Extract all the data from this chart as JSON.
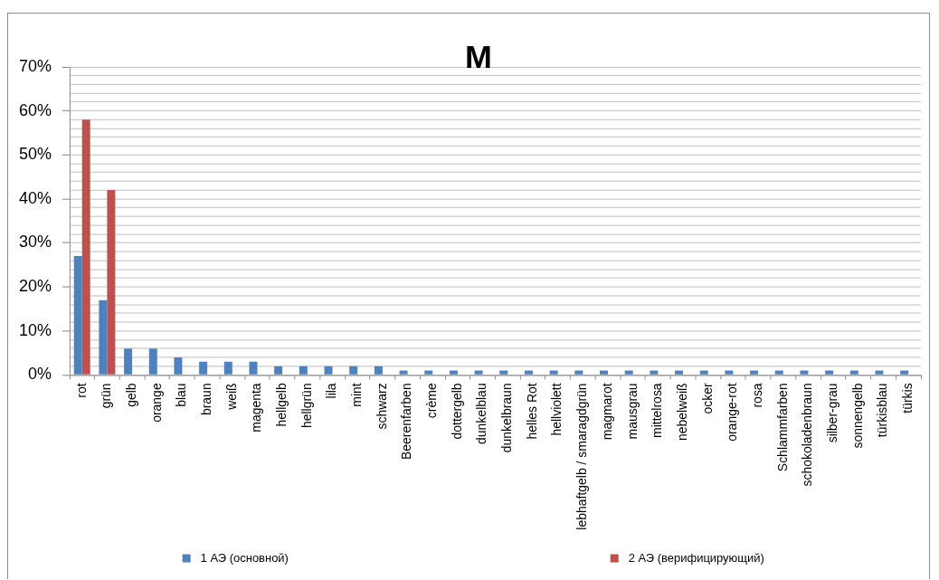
{
  "chart_data": {
    "type": "bar",
    "title": "M",
    "categories": [
      "rot",
      "grün",
      "gelb",
      "orange",
      "blau",
      "braun",
      "weiß",
      "magenta",
      "hellgelb",
      "hellgrün",
      "lila",
      "mint",
      "schwarz",
      "Beerenfarben",
      "crème",
      "dottergelb",
      "dunkelblau",
      "dunkelbraun",
      "helles Rot",
      "hellviolett",
      "lebhaftgelb / smaragdgrün",
      "magmarot",
      "mausgrau",
      "mittelrosa",
      "nebelweiß",
      "ocker",
      "orange-rot",
      "rosa",
      "Schlammfarben",
      "schokoladenbraun",
      "silber-grau",
      "sonnengelb",
      "türkisblau",
      "türkis"
    ],
    "series": [
      {
        "name": "1 АЭ (основной)",
        "color": "#4f81bd",
        "values": [
          27,
          17,
          6,
          6,
          4,
          3,
          3,
          3,
          2,
          2,
          2,
          2,
          2,
          1,
          1,
          1,
          1,
          1,
          1,
          1,
          1,
          1,
          1,
          1,
          1,
          1,
          1,
          1,
          1,
          1,
          1,
          1,
          1,
          1
        ]
      },
      {
        "name": "2 АЭ (верифицирующий)",
        "color": "#c0504d",
        "values": [
          58,
          42,
          null,
          null,
          null,
          null,
          null,
          null,
          null,
          null,
          null,
          null,
          null,
          null,
          null,
          null,
          null,
          null,
          null,
          null,
          null,
          null,
          null,
          null,
          null,
          null,
          null,
          null,
          null,
          null,
          null,
          null,
          null,
          null
        ]
      }
    ],
    "ylim": [
      0,
      70
    ],
    "yticks": [
      {
        "value": 0,
        "label": "0%"
      },
      {
        "value": 2,
        "label": null
      },
      {
        "value": 4,
        "label": null
      },
      {
        "value": 6,
        "label": null
      },
      {
        "value": 8,
        "label": null
      },
      {
        "value": 10,
        "label": "10%"
      },
      {
        "value": 12,
        "label": null
      },
      {
        "value": 14,
        "label": null
      },
      {
        "value": 16,
        "label": null
      },
      {
        "value": 18,
        "label": null
      },
      {
        "value": 20,
        "label": "20%"
      },
      {
        "value": 22,
        "label": null
      },
      {
        "value": 24,
        "label": null
      },
      {
        "value": 26,
        "label": null
      },
      {
        "value": 28,
        "label": null
      },
      {
        "value": 30,
        "label": "30%"
      },
      {
        "value": 32,
        "label": null
      },
      {
        "value": 34,
        "label": null
      },
      {
        "value": 36,
        "label": null
      },
      {
        "value": 38,
        "label": null
      },
      {
        "value": 40,
        "label": "40%"
      },
      {
        "value": 42,
        "label": null
      },
      {
        "value": 44,
        "label": null
      },
      {
        "value": 46,
        "label": null
      },
      {
        "value": 48,
        "label": null
      },
      {
        "value": 50,
        "label": "50%"
      },
      {
        "value": 52,
        "label": null
      },
      {
        "value": 54,
        "label": null
      },
      {
        "value": 56,
        "label": null
      },
      {
        "value": 58,
        "label": null
      },
      {
        "value": 60,
        "label": "60%"
      },
      {
        "value": 62,
        "label": null
      },
      {
        "value": 64,
        "label": null
      },
      {
        "value": 66,
        "label": null
      },
      {
        "value": 68,
        "label": null
      },
      {
        "value": 70,
        "label": "70%"
      }
    ],
    "grid": "y",
    "legend": "bottom"
  }
}
